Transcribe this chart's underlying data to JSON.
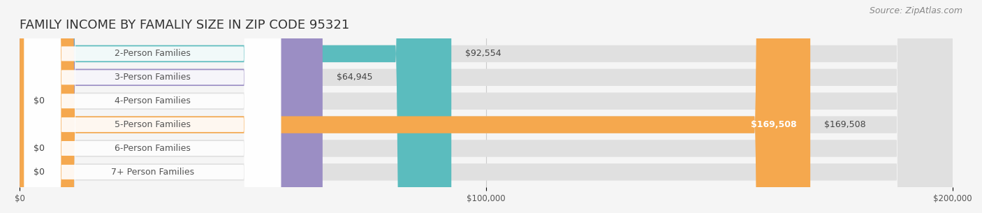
{
  "title": "FAMILY INCOME BY FAMALIY SIZE IN ZIP CODE 95321",
  "source": "Source: ZipAtlas.com",
  "categories": [
    "2-Person Families",
    "3-Person Families",
    "4-Person Families",
    "5-Person Families",
    "6-Person Families",
    "7+ Person Families"
  ],
  "values": [
    92554,
    64945,
    0,
    169508,
    0,
    0
  ],
  "bar_colors": [
    "#5bbcbe",
    "#9b8ec4",
    "#f48fb1",
    "#f5a84e",
    "#f48fb1",
    "#90caf9"
  ],
  "label_colors": [
    "#444444",
    "#444444",
    "#444444",
    "#ffffff",
    "#444444",
    "#444444"
  ],
  "value_labels": [
    "$92,554",
    "$64,945",
    "$0",
    "$169,508",
    "$0",
    "$0"
  ],
  "background_color": "#f5f5f5",
  "bar_background": "#e8e8e8",
  "xlim": [
    0,
    200000
  ],
  "xticks": [
    0,
    100000,
    200000
  ],
  "xtick_labels": [
    "$0",
    "$100,000",
    "$200,000"
  ],
  "title_fontsize": 13,
  "source_fontsize": 9,
  "label_fontsize": 9,
  "value_fontsize": 9
}
